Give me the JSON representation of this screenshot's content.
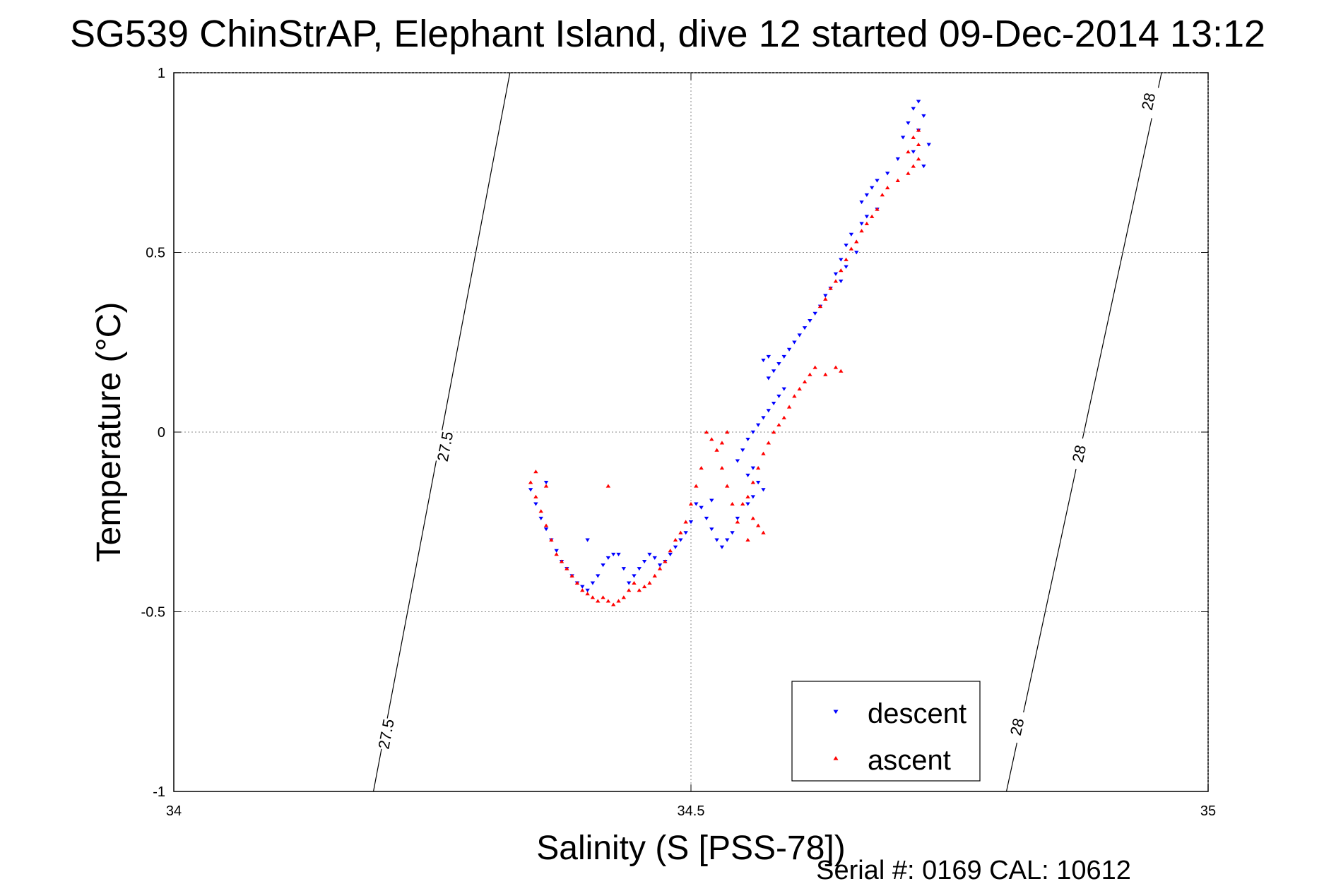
{
  "chart_data": {
    "type": "scatter",
    "title": "SG539 ChinStrAP, Elephant Island, dive 12 started 09-Dec-2014 13:12",
    "xlabel": "Salinity (S [PSS-78])",
    "ylabel": "Temperature (°C)",
    "xlim": [
      34,
      35
    ],
    "ylim": [
      -1,
      1
    ],
    "xticks": [
      34,
      34.5,
      35
    ],
    "xtick_labels": [
      "34",
      "34.5",
      "35"
    ],
    "yticks": [
      -1,
      -0.5,
      0,
      0.5,
      1
    ],
    "ytick_labels": [
      "-1",
      "-0.5",
      "0",
      "0.5",
      "1"
    ],
    "grid": true,
    "legend_position": "bottom-right",
    "footer": "Serial #: 0169 CAL: 10612",
    "contours": [
      {
        "label": "27.5",
        "points": [
          [
            34.193,
            -1.0
          ],
          [
            34.325,
            1.0
          ]
        ],
        "label_positions": [
          [
            34.205,
            -0.84
          ],
          [
            34.262,
            -0.04
          ]
        ]
      },
      {
        "label": "28",
        "points": [
          [
            34.805,
            -1.0
          ],
          [
            34.955,
            1.0
          ]
        ],
        "label_positions": [
          [
            34.815,
            -0.82
          ],
          [
            34.875,
            -0.06
          ],
          [
            34.942,
            0.92
          ]
        ]
      }
    ],
    "series": [
      {
        "name": "descent",
        "color": "#0000ff",
        "marker": "triangle-down",
        "points": [
          [
            34.72,
            0.92
          ],
          [
            34.715,
            0.9
          ],
          [
            34.725,
            0.88
          ],
          [
            34.71,
            0.86
          ],
          [
            34.72,
            0.84
          ],
          [
            34.705,
            0.82
          ],
          [
            34.73,
            0.8
          ],
          [
            34.715,
            0.78
          ],
          [
            34.7,
            0.76
          ],
          [
            34.725,
            0.74
          ],
          [
            34.69,
            0.72
          ],
          [
            34.68,
            0.7
          ],
          [
            34.675,
            0.68
          ],
          [
            34.67,
            0.66
          ],
          [
            34.665,
            0.64
          ],
          [
            34.68,
            0.62
          ],
          [
            34.67,
            0.6
          ],
          [
            34.665,
            0.58
          ],
          [
            34.655,
            0.55
          ],
          [
            34.65,
            0.52
          ],
          [
            34.66,
            0.5
          ],
          [
            34.645,
            0.48
          ],
          [
            34.65,
            0.46
          ],
          [
            34.64,
            0.44
          ],
          [
            34.645,
            0.42
          ],
          [
            34.635,
            0.4
          ],
          [
            34.63,
            0.38
          ],
          [
            34.625,
            0.35
          ],
          [
            34.62,
            0.33
          ],
          [
            34.615,
            0.31
          ],
          [
            34.61,
            0.29
          ],
          [
            34.605,
            0.27
          ],
          [
            34.6,
            0.25
          ],
          [
            34.595,
            0.23
          ],
          [
            34.59,
            0.21
          ],
          [
            34.585,
            0.19
          ],
          [
            34.58,
            0.17
          ],
          [
            34.575,
            0.15
          ],
          [
            34.57,
            0.2
          ],
          [
            34.59,
            0.12
          ],
          [
            34.585,
            0.1
          ],
          [
            34.58,
            0.08
          ],
          [
            34.575,
            0.06
          ],
          [
            34.57,
            0.04
          ],
          [
            34.565,
            0.02
          ],
          [
            34.56,
            0.0
          ],
          [
            34.555,
            -0.02
          ],
          [
            34.55,
            -0.05
          ],
          [
            34.545,
            -0.08
          ],
          [
            34.56,
            -0.1
          ],
          [
            34.555,
            -0.12
          ],
          [
            34.565,
            -0.14
          ],
          [
            34.57,
            -0.16
          ],
          [
            34.56,
            -0.18
          ],
          [
            34.555,
            -0.2
          ],
          [
            34.545,
            -0.24
          ],
          [
            34.54,
            -0.28
          ],
          [
            34.535,
            -0.3
          ],
          [
            34.53,
            -0.32
          ],
          [
            34.525,
            -0.3
          ],
          [
            34.52,
            -0.27
          ],
          [
            34.515,
            -0.24
          ],
          [
            34.51,
            -0.21
          ],
          [
            34.52,
            -0.19
          ],
          [
            34.505,
            -0.2
          ],
          [
            34.5,
            -0.25
          ],
          [
            34.495,
            -0.28
          ],
          [
            34.49,
            -0.3
          ],
          [
            34.485,
            -0.32
          ],
          [
            34.48,
            -0.34
          ],
          [
            34.475,
            -0.36
          ],
          [
            34.47,
            -0.37
          ],
          [
            34.465,
            -0.35
          ],
          [
            34.46,
            -0.34
          ],
          [
            34.455,
            -0.36
          ],
          [
            34.45,
            -0.38
          ],
          [
            34.445,
            -0.4
          ],
          [
            34.44,
            -0.42
          ],
          [
            34.435,
            -0.38
          ],
          [
            34.43,
            -0.34
          ],
          [
            34.425,
            -0.34
          ],
          [
            34.42,
            -0.35
          ],
          [
            34.415,
            -0.37
          ],
          [
            34.41,
            -0.4
          ],
          [
            34.405,
            -0.42
          ],
          [
            34.4,
            -0.44
          ],
          [
            34.395,
            -0.43
          ],
          [
            34.39,
            -0.42
          ],
          [
            34.385,
            -0.4
          ],
          [
            34.38,
            -0.38
          ],
          [
            34.375,
            -0.36
          ],
          [
            34.37,
            -0.33
          ],
          [
            34.365,
            -0.3
          ],
          [
            34.36,
            -0.27
          ],
          [
            34.355,
            -0.24
          ],
          [
            34.35,
            -0.2
          ],
          [
            34.345,
            -0.16
          ],
          [
            34.36,
            -0.14
          ],
          [
            34.575,
            0.21
          ],
          [
            34.4,
            -0.3
          ]
        ]
      },
      {
        "name": "ascent",
        "color": "#ff0000",
        "marker": "triangle-up",
        "points": [
          [
            34.72,
            0.84
          ],
          [
            34.715,
            0.82
          ],
          [
            34.72,
            0.8
          ],
          [
            34.71,
            0.78
          ],
          [
            34.72,
            0.76
          ],
          [
            34.715,
            0.74
          ],
          [
            34.71,
            0.72
          ],
          [
            34.7,
            0.7
          ],
          [
            34.69,
            0.68
          ],
          [
            34.685,
            0.66
          ],
          [
            34.68,
            0.62
          ],
          [
            34.675,
            0.6
          ],
          [
            34.67,
            0.58
          ],
          [
            34.665,
            0.56
          ],
          [
            34.66,
            0.53
          ],
          [
            34.655,
            0.51
          ],
          [
            34.65,
            0.48
          ],
          [
            34.645,
            0.45
          ],
          [
            34.64,
            0.42
          ],
          [
            34.635,
            0.4
          ],
          [
            34.63,
            0.37
          ],
          [
            34.625,
            0.35
          ],
          [
            34.62,
            0.18
          ],
          [
            34.615,
            0.16
          ],
          [
            34.61,
            0.14
          ],
          [
            34.605,
            0.12
          ],
          [
            34.6,
            0.1
          ],
          [
            34.595,
            0.07
          ],
          [
            34.59,
            0.04
          ],
          [
            34.585,
            0.02
          ],
          [
            34.58,
            0.0
          ],
          [
            34.575,
            -0.03
          ],
          [
            34.57,
            -0.06
          ],
          [
            34.565,
            -0.1
          ],
          [
            34.56,
            -0.14
          ],
          [
            34.555,
            -0.18
          ],
          [
            34.55,
            -0.2
          ],
          [
            34.56,
            -0.24
          ],
          [
            34.565,
            -0.26
          ],
          [
            34.57,
            -0.28
          ],
          [
            34.555,
            -0.3
          ],
          [
            34.545,
            -0.25
          ],
          [
            34.54,
            -0.2
          ],
          [
            34.535,
            -0.15
          ],
          [
            34.53,
            -0.1
          ],
          [
            34.525,
            -0.05
          ],
          [
            34.52,
            -0.02
          ],
          [
            34.515,
            0.0
          ],
          [
            34.51,
            -0.1
          ],
          [
            34.505,
            -0.15
          ],
          [
            34.5,
            -0.2
          ],
          [
            34.495,
            -0.25
          ],
          [
            34.49,
            -0.28
          ],
          [
            34.485,
            -0.3
          ],
          [
            34.48,
            -0.33
          ],
          [
            34.475,
            -0.36
          ],
          [
            34.47,
            -0.38
          ],
          [
            34.465,
            -0.4
          ],
          [
            34.46,
            -0.42
          ],
          [
            34.455,
            -0.43
          ],
          [
            34.45,
            -0.44
          ],
          [
            34.445,
            -0.42
          ],
          [
            34.44,
            -0.44
          ],
          [
            34.435,
            -0.46
          ],
          [
            34.43,
            -0.47
          ],
          [
            34.425,
            -0.48
          ],
          [
            34.42,
            -0.47
          ],
          [
            34.415,
            -0.46
          ],
          [
            34.41,
            -0.47
          ],
          [
            34.405,
            -0.46
          ],
          [
            34.4,
            -0.45
          ],
          [
            34.395,
            -0.44
          ],
          [
            34.39,
            -0.42
          ],
          [
            34.385,
            -0.4
          ],
          [
            34.38,
            -0.38
          ],
          [
            34.375,
            -0.36
          ],
          [
            34.37,
            -0.34
          ],
          [
            34.365,
            -0.3
          ],
          [
            34.36,
            -0.26
          ],
          [
            34.355,
            -0.22
          ],
          [
            34.35,
            -0.18
          ],
          [
            34.345,
            -0.14
          ],
          [
            34.35,
            -0.11
          ],
          [
            34.36,
            -0.15
          ],
          [
            34.42,
            -0.15
          ],
          [
            34.64,
            0.18
          ],
          [
            34.645,
            0.17
          ],
          [
            34.63,
            0.16
          ],
          [
            34.535,
            0.0
          ],
          [
            34.53,
            -0.03
          ]
        ]
      }
    ]
  }
}
